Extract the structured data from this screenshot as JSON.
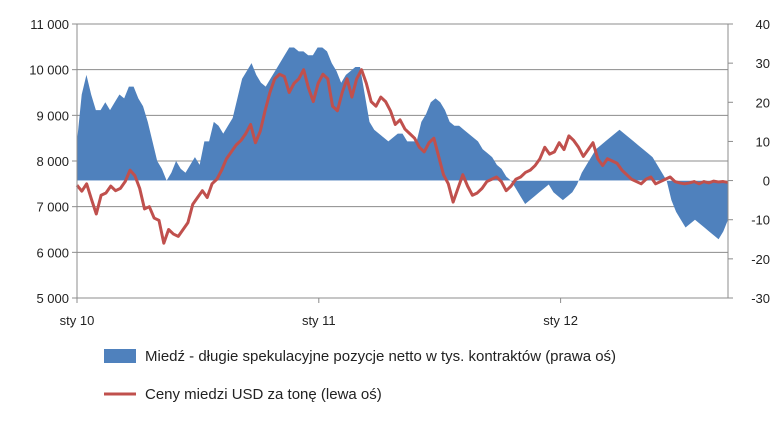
{
  "chart_data": {
    "type": "area+line",
    "title": "",
    "x_tick_labels": [
      "sty 10",
      "sty 11",
      "sty 12"
    ],
    "x_tick_index": [
      0,
      52,
      104
    ],
    "left_axis": {
      "ylim": [
        5000,
        11000
      ],
      "ticks": [
        5000,
        6000,
        7000,
        8000,
        9000,
        10000,
        11000
      ],
      "tick_labels": [
        "5 000",
        "6 000",
        "7 000",
        "8 000",
        "9 000",
        "10 000",
        "11 000"
      ]
    },
    "right_axis": {
      "ylim": [
        -30,
        40
      ],
      "ticks": [
        -30,
        -20,
        -10,
        0,
        10,
        20,
        30,
        40
      ],
      "tick_labels": [
        "-30",
        "-20",
        "-10",
        "0",
        "10",
        "20",
        "30",
        "40"
      ]
    },
    "grid": true,
    "legend_placement": "bottom",
    "series": [
      {
        "name": "Miedź - długie spekulacyjne pozycje netto w tys. kontraktów (prawa oś)",
        "type": "area",
        "axis": "right",
        "color": "#4F81BD",
        "values": [
          10,
          22,
          27,
          22,
          18,
          18,
          20,
          18,
          20,
          22,
          21,
          24,
          24,
          21,
          19,
          15,
          10,
          5,
          3,
          0,
          2,
          5,
          3,
          2,
          4,
          6,
          4,
          10,
          10,
          15,
          14,
          12,
          14,
          16,
          21,
          26,
          28,
          30,
          27,
          25,
          24,
          26,
          28,
          30,
          32,
          34,
          34,
          33,
          33,
          32,
          32,
          34,
          34,
          33,
          30,
          28,
          25,
          27,
          28,
          29,
          29,
          22,
          15,
          13,
          12,
          11,
          10,
          11,
          12,
          12,
          10,
          10,
          10,
          15,
          17,
          20,
          21,
          20,
          18,
          15,
          14,
          14,
          13,
          12,
          11,
          10,
          8,
          7,
          6,
          4,
          3,
          1,
          0,
          -2,
          -4,
          -6,
          -5,
          -4,
          -3,
          -2,
          -1,
          -3,
          -4,
          -5,
          -4,
          -3,
          -1,
          2,
          4,
          6,
          8,
          9,
          10,
          11,
          12,
          13,
          12,
          11,
          10,
          9,
          8,
          7,
          6,
          4,
          2,
          0,
          -5,
          -8,
          -10,
          -12,
          -11,
          -10,
          -11,
          -12,
          -13,
          -14,
          -15,
          -13,
          -10
        ]
      },
      {
        "name": "Ceny miedzi USD za tonę (lewa oś)",
        "type": "line",
        "axis": "left",
        "color": "#C0504D",
        "values": [
          7470,
          7340,
          7500,
          7160,
          6840,
          7250,
          7300,
          7450,
          7350,
          7400,
          7550,
          7800,
          7680,
          7400,
          6950,
          7000,
          6750,
          6700,
          6200,
          6500,
          6400,
          6350,
          6500,
          6650,
          7050,
          7200,
          7350,
          7200,
          7500,
          7600,
          7800,
          8050,
          8200,
          8350,
          8450,
          8600,
          8800,
          8400,
          8650,
          9100,
          9500,
          9800,
          9900,
          9850,
          9500,
          9700,
          9800,
          10000,
          9600,
          9300,
          9700,
          9900,
          9800,
          9200,
          9100,
          9500,
          9800,
          9400,
          9800,
          10000,
          9700,
          9300,
          9200,
          9400,
          9300,
          9100,
          8800,
          8900,
          8700,
          8600,
          8500,
          8300,
          8200,
          8400,
          8500,
          8100,
          7700,
          7500,
          7100,
          7400,
          7700,
          7450,
          7250,
          7300,
          7400,
          7550,
          7600,
          7650,
          7550,
          7350,
          7450,
          7600,
          7650,
          7750,
          7800,
          7900,
          8050,
          8300,
          8150,
          8200,
          8400,
          8250,
          8550,
          8450,
          8300,
          8100,
          8250,
          8400,
          8050,
          7900,
          8050,
          8000,
          7950,
          7800,
          7700,
          7600,
          7550,
          7500,
          7600,
          7650,
          7500,
          7550,
          7600,
          7650,
          7550,
          7520,
          7500,
          7520,
          7550,
          7500,
          7550,
          7520,
          7560,
          7540,
          7550,
          7530
        ]
      }
    ]
  }
}
